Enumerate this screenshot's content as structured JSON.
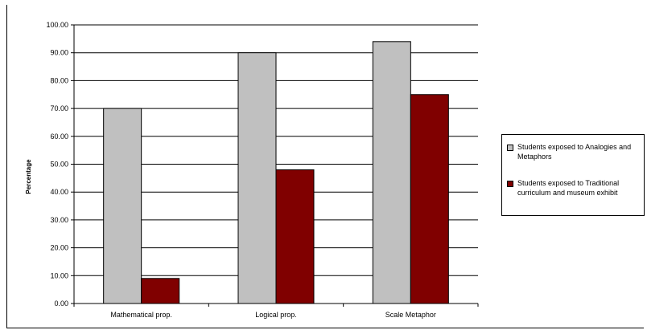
{
  "chart_data": {
    "type": "bar",
    "categories": [
      "Mathematical prop.",
      "Logical prop.",
      "Scale Metaphor"
    ],
    "series": [
      {
        "name": "Students exposed to Analogies and Metaphors",
        "color": "#c0c0c0",
        "values": [
          70,
          90,
          94
        ]
      },
      {
        "name": "Students exposed to Traditional curriculum and museum exhibit",
        "color": "#800000",
        "values": [
          9,
          48,
          75
        ]
      }
    ],
    "title": "",
    "xlabel": "",
    "ylabel": "Percentage",
    "ylim": [
      0,
      100
    ],
    "yticks": [
      "0.00",
      "10.00",
      "20.00",
      "30.00",
      "40.00",
      "50.00",
      "60.00",
      "70.00",
      "80.00",
      "90.00",
      "100.00"
    ],
    "grid": true,
    "legend_position": "right"
  },
  "legend": {
    "items": [
      {
        "label": "Students exposed to Analogies and Metaphors",
        "color": "#c0c0c0"
      },
      {
        "label": "Students exposed to Traditional curriculum and museum exhibit",
        "color": "#800000"
      }
    ]
  }
}
